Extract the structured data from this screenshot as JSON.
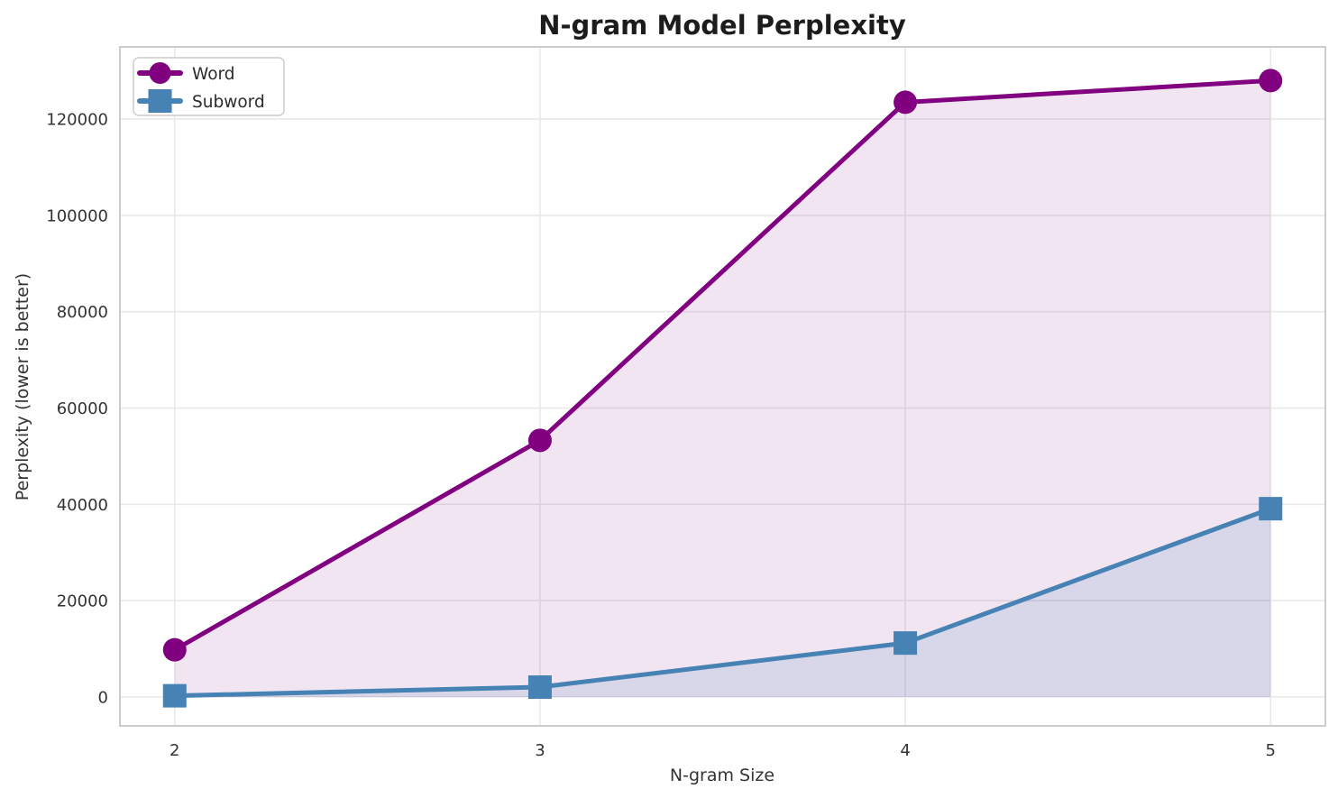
{
  "chart_data": {
    "type": "line",
    "title": "N-gram Model Perplexity",
    "xlabel": "N-gram Size",
    "ylabel": "Perplexity (lower is better)",
    "x": [
      2,
      3,
      4,
      5
    ],
    "series": [
      {
        "name": "Word",
        "values": [
          9800,
          53300,
          123500,
          128000
        ],
        "color": "#800080",
        "marker": "circle",
        "fill": true,
        "fill_alpha": 0.1
      },
      {
        "name": "Subword",
        "values": [
          250,
          2050,
          11200,
          39100
        ],
        "color": "#4682b4",
        "marker": "square",
        "fill": true,
        "fill_alpha": 0.15
      }
    ],
    "xticks": [
      2,
      3,
      4,
      5
    ],
    "yticks": [
      0,
      20000,
      40000,
      60000,
      80000,
      100000,
      120000
    ],
    "xlim": [
      1.85,
      5.15
    ],
    "ylim": [
      -6000,
      135000
    ],
    "grid": true,
    "legend_position": "upper left",
    "appearance": {
      "grid_color": "#e9e9e9",
      "spine_color": "#cccccc",
      "background": "#ffffff",
      "title_color": "#1c1c1c",
      "tick_color": "#333333"
    }
  }
}
